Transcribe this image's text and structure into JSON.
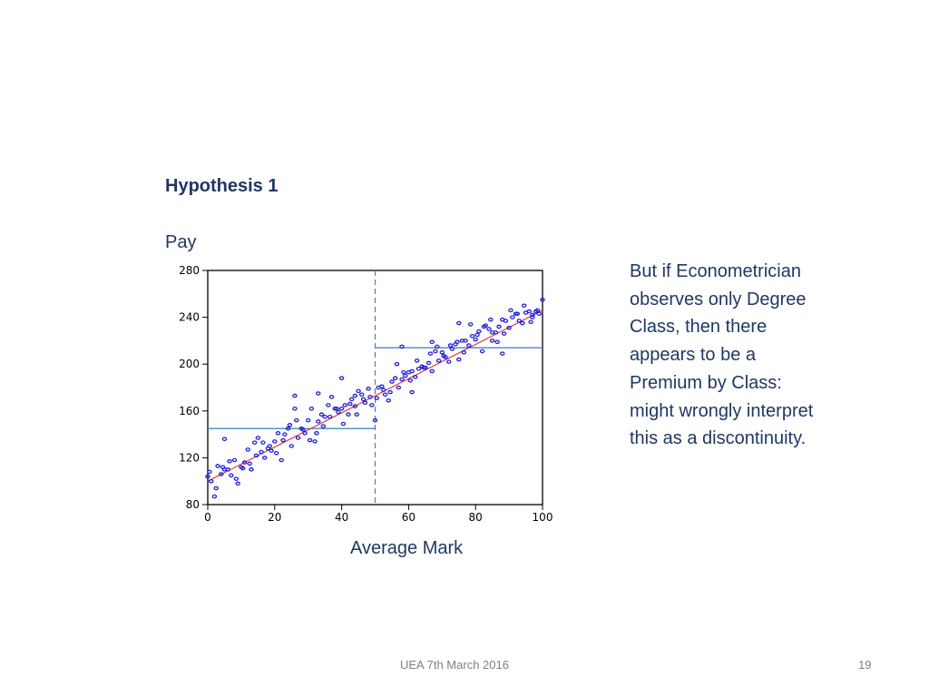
{
  "slide": {
    "heading": "Hypothesis 1",
    "note_lines": [
      "But if Econometrician",
      "observes only Degree",
      "Class, then there",
      "appears to be a",
      "Premium by Class:",
      "might wrongly interpret",
      "this as a discontinuity."
    ],
    "footer_center": "UEA 7th March 2016",
    "page_number": "19"
  },
  "chart_data": {
    "type": "scatter",
    "xlabel": "Average Mark",
    "ylabel": "Pay",
    "xlim": [
      0,
      100
    ],
    "ylim": [
      80,
      280
    ],
    "x_ticks": [
      0,
      20,
      40,
      60,
      80,
      100
    ],
    "x_tick_labels": [
      "0",
      "20",
      "40",
      "60",
      "80",
      "100"
    ],
    "y_ticks": [
      80,
      120,
      160,
      200,
      240,
      280
    ],
    "y_tick_labels": [
      "80",
      "120",
      "160",
      "200",
      "240",
      "280"
    ],
    "grid": false,
    "colors": {
      "points": "#1f1fd6",
      "trend_line": "#e03030",
      "class_means": "#4a86c8",
      "threshold": "#4a86c8"
    },
    "trend_line": {
      "x": [
        0,
        100
      ],
      "y": [
        100,
        246
      ]
    },
    "threshold": {
      "x": 50
    },
    "class_means": [
      {
        "x": [
          0,
          50
        ],
        "y": 145
      },
      {
        "x": [
          50,
          100
        ],
        "y": 214
      }
    ],
    "points": {
      "x": [
        0,
        1,
        2,
        3,
        4,
        5,
        6,
        7,
        8,
        9,
        10,
        11,
        12,
        13,
        14,
        15,
        16,
        17,
        18,
        19,
        20,
        21,
        22,
        23,
        24,
        25,
        26,
        27,
        28,
        29,
        30,
        31,
        32,
        33,
        34,
        35,
        36,
        37,
        38,
        39,
        40,
        41,
        42,
        43,
        44,
        45,
        46,
        47,
        48,
        49,
        50,
        51,
        52,
        53,
        54,
        55,
        56,
        57,
        58,
        59,
        60,
        61,
        62,
        63,
        64,
        65,
        66,
        67,
        68,
        69,
        70,
        71,
        72,
        73,
        74,
        75,
        76,
        77,
        78,
        79,
        80,
        81,
        82,
        83,
        84,
        85,
        86,
        87,
        88,
        89,
        90,
        91,
        92,
        93,
        94,
        95,
        96,
        97,
        98,
        99,
        100,
        0.5,
        2.5,
        4.5,
        6.5,
        8.5,
        10.5,
        12.5,
        14.5,
        16.5,
        18.5,
        20.5,
        22.5,
        24.5,
        26.5,
        28.5,
        30.5,
        32.5,
        34.5,
        36.5,
        38.5,
        40.5,
        42.5,
        44.5,
        46.5,
        48.5,
        50.5,
        52.5,
        54.5,
        56.5,
        58.5,
        60.5,
        62.5,
        64.5,
        66.5,
        68.5,
        70.5,
        72.5,
        74.5,
        76.5,
        78.5,
        80.5,
        82.5,
        84.5,
        86.5,
        88.5,
        90.5,
        92.5,
        94.5,
        96.5,
        98.5,
        5,
        33,
        40,
        58,
        61,
        67,
        85,
        88,
        97,
        26,
        44,
        75
      ],
      "y": [
        104,
        100,
        87,
        113,
        106,
        136,
        110,
        105,
        118,
        98,
        112,
        116,
        127,
        110,
        133,
        137,
        125,
        120,
        128,
        126,
        134,
        141,
        118,
        140,
        145,
        130,
        162,
        137,
        145,
        141,
        152,
        162,
        134,
        151,
        157,
        155,
        165,
        172,
        162,
        159,
        162,
        165,
        157,
        170,
        164,
        177,
        174,
        167,
        179,
        165,
        152,
        180,
        181,
        174,
        169,
        185,
        188,
        180,
        187,
        190,
        193,
        194,
        189,
        196,
        198,
        197,
        201,
        194,
        211,
        203,
        210,
        206,
        202,
        213,
        217,
        204,
        220,
        220,
        216,
        224,
        221,
        228,
        211,
        233,
        230,
        227,
        227,
        232,
        238,
        237,
        231,
        240,
        243,
        237,
        235,
        244,
        245,
        242,
        245,
        243,
        255,
        108,
        94,
        112,
        117,
        102,
        111,
        115,
        122,
        133,
        130,
        124,
        135,
        148,
        152,
        144,
        135,
        141,
        147,
        155,
        162,
        149,
        166,
        157,
        170,
        172,
        171,
        178,
        176,
        200,
        193,
        186,
        203,
        197,
        209,
        215,
        207,
        216,
        219,
        210,
        234,
        225,
        232,
        238,
        219,
        226,
        246,
        243,
        250,
        236,
        246,
        110,
        175,
        188,
        215,
        176,
        219,
        220,
        209,
        240,
        173,
        173,
        235
      ]
    }
  }
}
